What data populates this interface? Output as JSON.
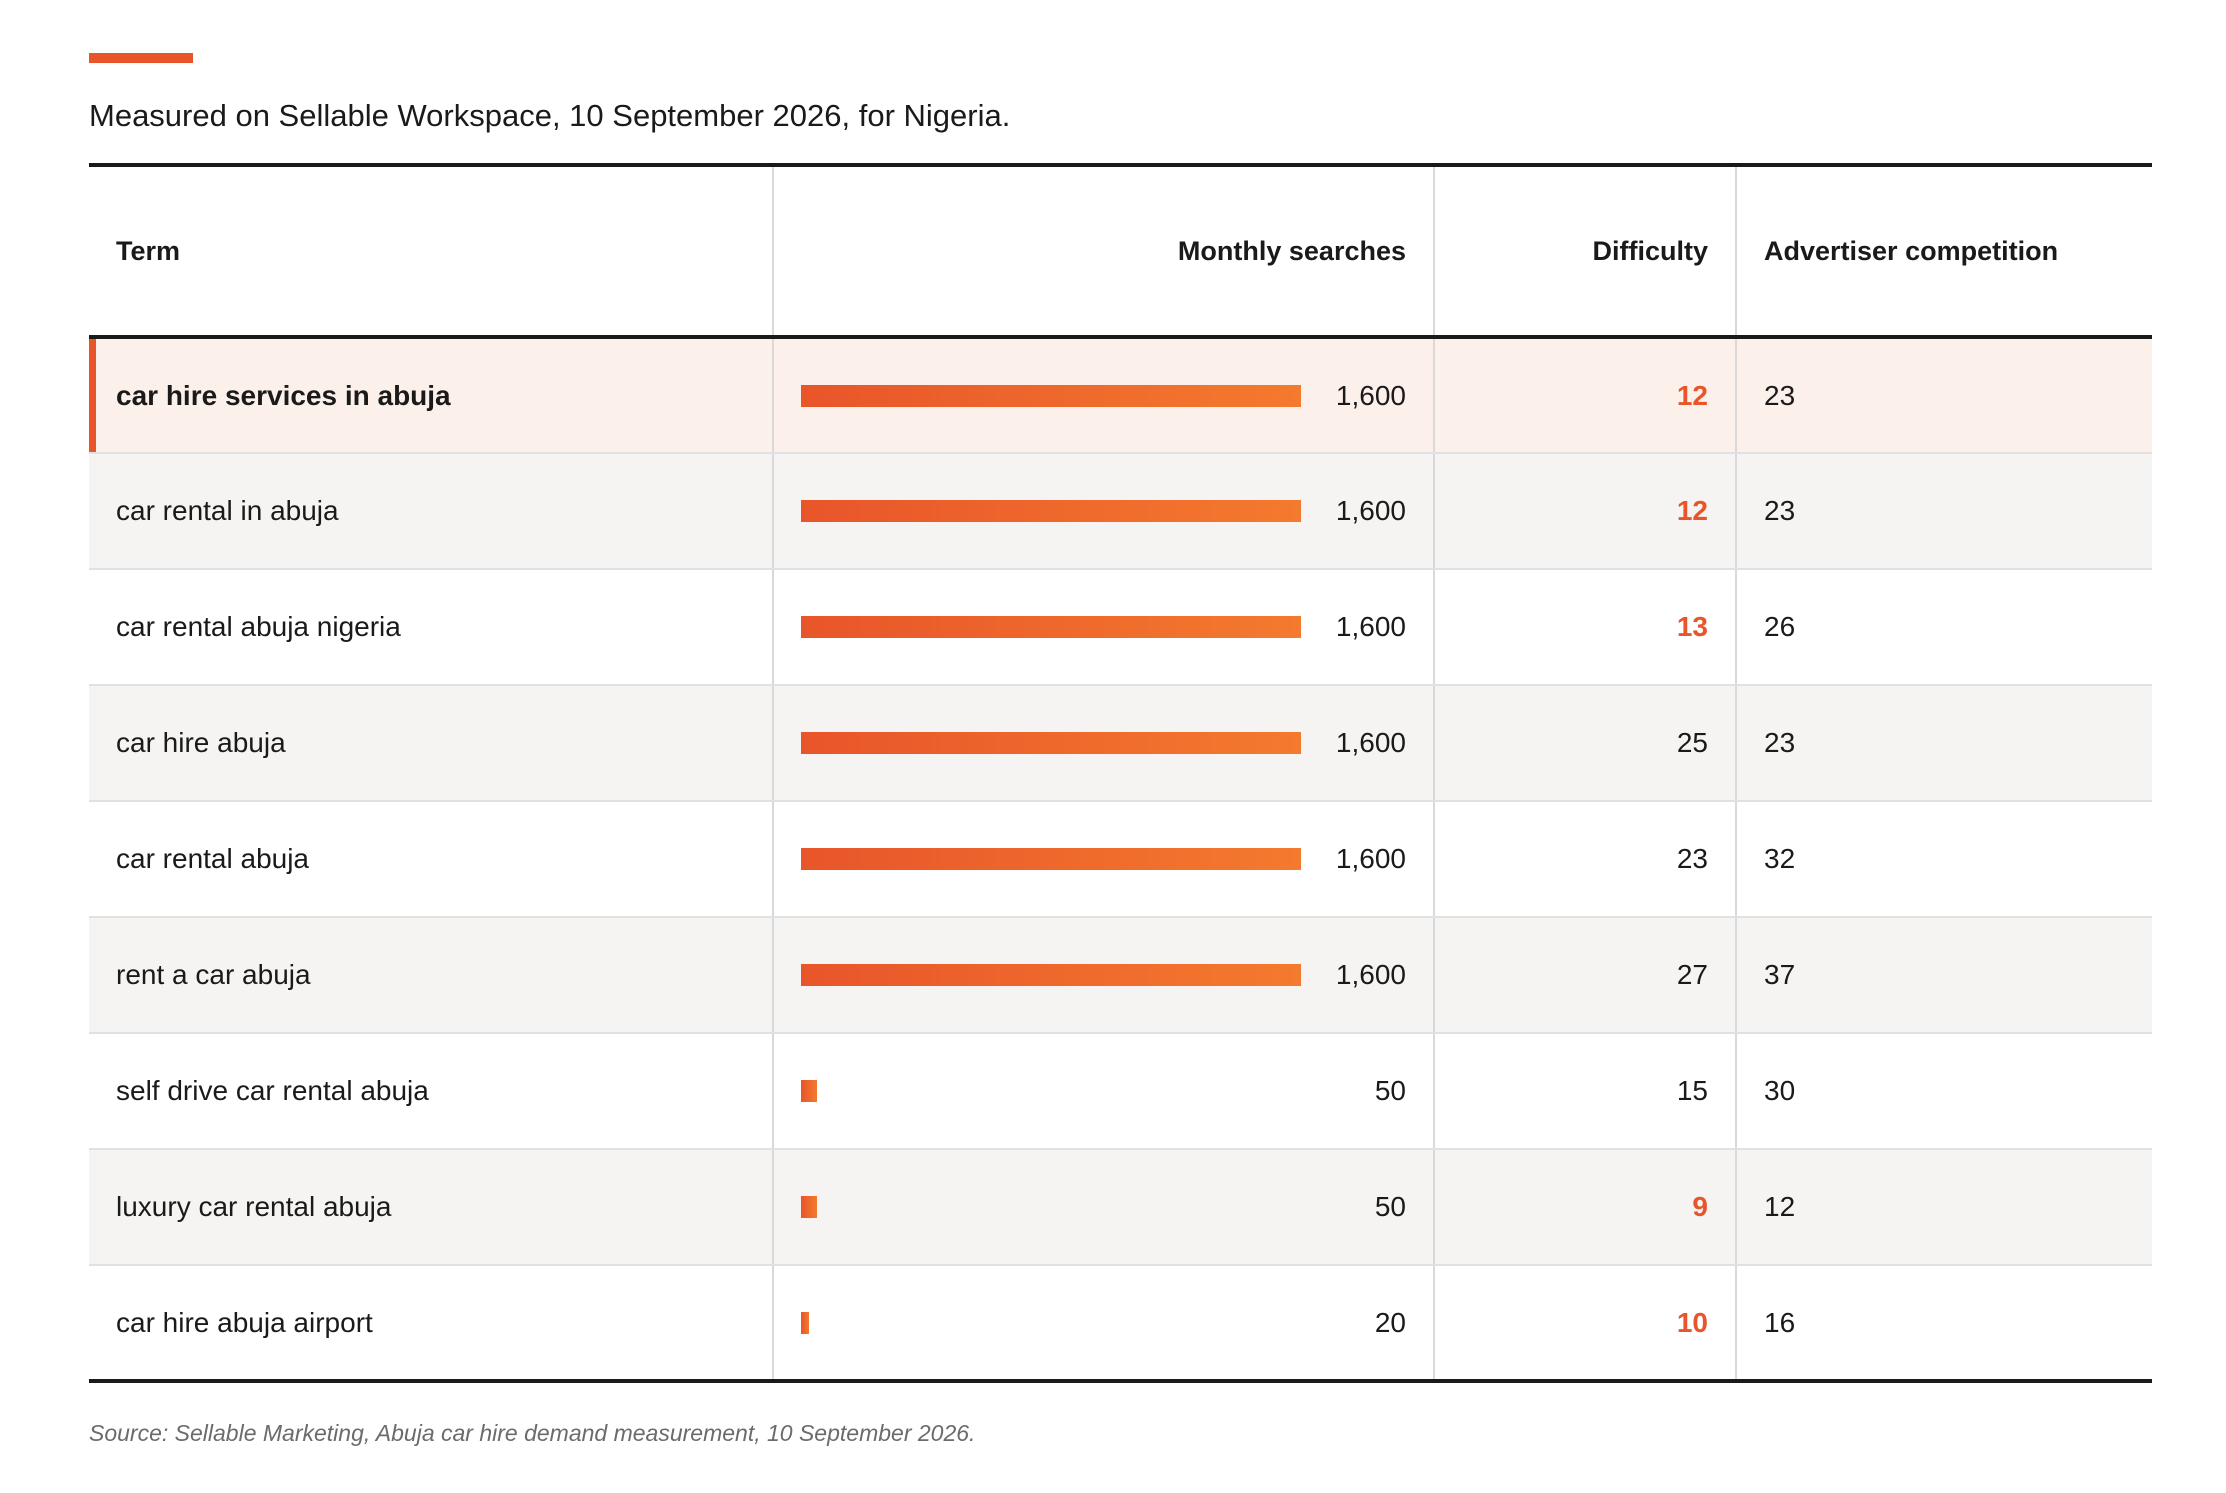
{
  "subtitle": "Measured on Sellable Workspace, 10 September 2026, for Nigeria.",
  "source": "Source: Sellable Marketing, Abuja car hire demand measurement, 10 September 2026.",
  "colors": {
    "accent": "#e8552a",
    "bar_end": "#f47a2e",
    "highlight_row": "#fcf0eb",
    "alt_row": "#f5f4f2"
  },
  "chart_data": {
    "type": "table",
    "columns": [
      "Term",
      "Monthly searches",
      "Difficulty",
      "Advertiser competition"
    ],
    "bar_max": 1600,
    "rows": [
      {
        "term": "car hire services in abuja",
        "monthly_searches": 1600,
        "monthly_searches_label": "1,600",
        "difficulty": "12",
        "difficulty_highlight": true,
        "competition": "23",
        "highlighted": true
      },
      {
        "term": "car rental in abuja",
        "monthly_searches": 1600,
        "monthly_searches_label": "1,600",
        "difficulty": "12",
        "difficulty_highlight": true,
        "competition": "23",
        "highlighted": false
      },
      {
        "term": "car rental abuja nigeria",
        "monthly_searches": 1600,
        "monthly_searches_label": "1,600",
        "difficulty": "13",
        "difficulty_highlight": true,
        "competition": "26",
        "highlighted": false
      },
      {
        "term": "car hire abuja",
        "monthly_searches": 1600,
        "monthly_searches_label": "1,600",
        "difficulty": "25",
        "difficulty_highlight": false,
        "competition": "23",
        "highlighted": false
      },
      {
        "term": "car rental abuja",
        "monthly_searches": 1600,
        "monthly_searches_label": "1,600",
        "difficulty": "23",
        "difficulty_highlight": false,
        "competition": "32",
        "highlighted": false
      },
      {
        "term": "rent a car abuja",
        "monthly_searches": 1600,
        "monthly_searches_label": "1,600",
        "difficulty": "27",
        "difficulty_highlight": false,
        "competition": "37",
        "highlighted": false
      },
      {
        "term": "self drive car rental abuja",
        "monthly_searches": 50,
        "monthly_searches_label": "50",
        "difficulty": "15",
        "difficulty_highlight": false,
        "competition": "30",
        "highlighted": false
      },
      {
        "term": "luxury car rental abuja",
        "monthly_searches": 50,
        "monthly_searches_label": "50",
        "difficulty": "9",
        "difficulty_highlight": true,
        "competition": "12",
        "highlighted": false
      },
      {
        "term": "car hire abuja airport",
        "monthly_searches": 20,
        "monthly_searches_label": "20",
        "difficulty": "10",
        "difficulty_highlight": true,
        "competition": "16",
        "highlighted": false
      }
    ]
  }
}
